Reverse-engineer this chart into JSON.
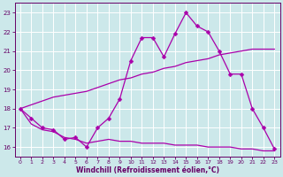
{
  "xlabel": "Windchill (Refroidissement éolien,°C)",
  "bg_color": "#cce8ea",
  "line_color": "#aa00aa",
  "grid_color": "#ffffff",
  "x": [
    0,
    1,
    2,
    3,
    4,
    5,
    6,
    7,
    8,
    9,
    10,
    11,
    12,
    13,
    14,
    15,
    16,
    17,
    18,
    19,
    20,
    21,
    22,
    23
  ],
  "series1": [
    18.0,
    17.5,
    17.0,
    16.9,
    16.4,
    16.5,
    16.0,
    17.0,
    17.5,
    18.5,
    20.5,
    21.7,
    21.7,
    20.7,
    21.9,
    23.0,
    22.3,
    22.0,
    21.0,
    19.8,
    19.8,
    18.0,
    17.0,
    15.9
  ],
  "series2": [
    18.0,
    18.2,
    18.4,
    18.6,
    18.7,
    18.8,
    18.9,
    19.1,
    19.3,
    19.5,
    19.6,
    19.8,
    19.9,
    20.1,
    20.2,
    20.4,
    20.5,
    20.6,
    20.8,
    20.9,
    21.0,
    21.1,
    21.1,
    21.1
  ],
  "series3": [
    18.0,
    17.2,
    16.9,
    16.8,
    16.5,
    16.4,
    16.2,
    16.3,
    16.4,
    16.3,
    16.3,
    16.2,
    16.2,
    16.2,
    16.1,
    16.1,
    16.1,
    16.0,
    16.0,
    16.0,
    15.9,
    15.9,
    15.8,
    15.8
  ],
  "ylim": [
    15.5,
    23.5
  ],
  "xlim": [
    -0.5,
    23.5
  ],
  "yticks": [
    16,
    17,
    18,
    19,
    20,
    21,
    22,
    23
  ],
  "xticks": [
    0,
    1,
    2,
    3,
    4,
    5,
    6,
    7,
    8,
    9,
    10,
    11,
    12,
    13,
    14,
    15,
    16,
    17,
    18,
    19,
    20,
    21,
    22,
    23
  ],
  "markersize": 2.5,
  "linewidth": 0.9,
  "tick_color": "#660066",
  "tick_fontsize": 4.5,
  "xlabel_fontsize": 5.5
}
